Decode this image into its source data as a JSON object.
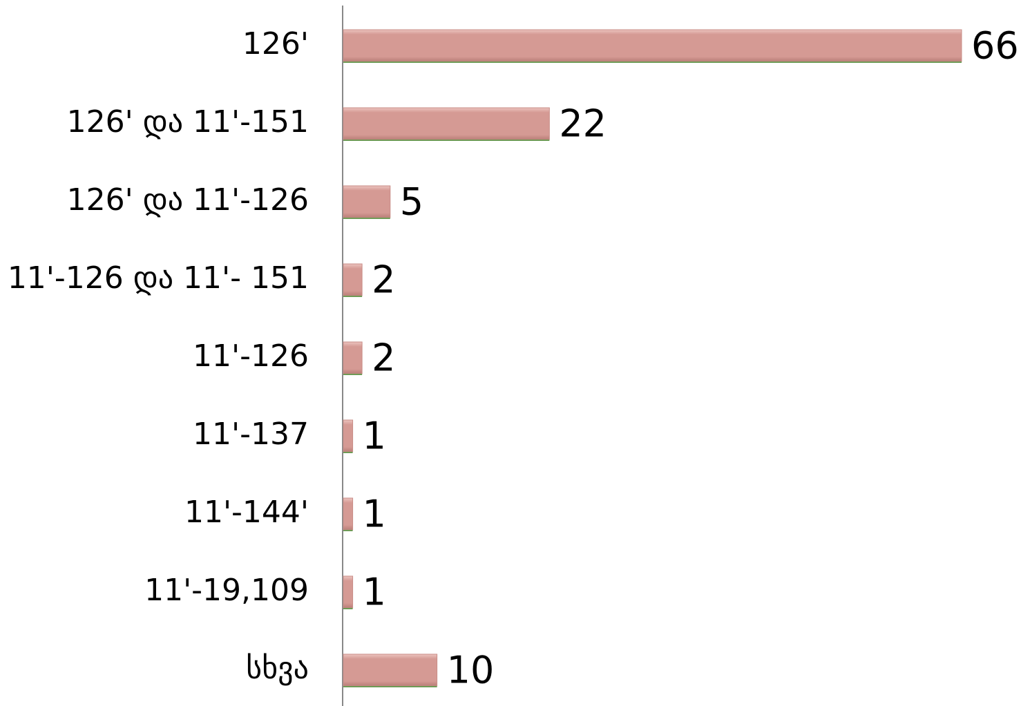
{
  "chart_data": {
    "type": "bar",
    "orientation": "horizontal",
    "categories": [
      "126'",
      "126' და 11'-151",
      "126' და 11'-126",
      "11'-126 და 11'- 151",
      "11'-126",
      "11'-137",
      "11'-144'",
      "11'-19,109",
      "სხვა"
    ],
    "values": [
      66,
      22,
      5,
      2,
      2,
      1,
      1,
      1,
      10
    ],
    "color": "#d59a94",
    "data_labels": true
  }
}
